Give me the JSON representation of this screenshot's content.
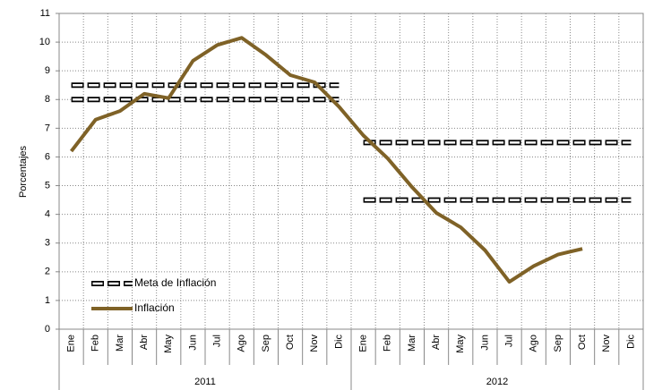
{
  "chart_data": {
    "type": "line",
    "y_label": "Porcentajes",
    "categories": [
      "Ene",
      "Feb",
      "Mar",
      "Abr",
      "May",
      "Jun",
      "Jul",
      "Ago",
      "Sep",
      "Oct",
      "Nov",
      "Dic",
      "Ene",
      "Feb",
      "Mar",
      "Abr",
      "May",
      "Jun",
      "Jul",
      "Ago",
      "Sep",
      "Oct",
      "Nov",
      "Dic"
    ],
    "year_groups": [
      "2011",
      "2012"
    ],
    "series": [
      {
        "name": "Meta de Inflación",
        "color": "#000000",
        "style": "dashed",
        "values": [
          8,
          8,
          8,
          8,
          8,
          8,
          8,
          8,
          8,
          8,
          8,
          8,
          4.5,
          4.5,
          4.5,
          4.5,
          4.5,
          4.5,
          4.5,
          4.5,
          4.5,
          4.5,
          4.5,
          4.5
        ],
        "upper": [
          8.5,
          8.5,
          8.5,
          8.5,
          8.5,
          8.5,
          8.5,
          8.5,
          8.5,
          8.5,
          8.5,
          8.5,
          6.5,
          6.5,
          6.5,
          6.5,
          6.5,
          6.5,
          6.5,
          6.5,
          6.5,
          6.5,
          6.5,
          6.5
        ]
      },
      {
        "name": "Inflación",
        "color": "#7f6227",
        "style": "solid",
        "values": [
          6.2,
          7.3,
          7.6,
          8.2,
          8.05,
          9.35,
          9.9,
          10.15,
          9.55,
          8.85,
          8.6,
          7.75,
          6.75,
          5.95,
          4.95,
          4.05,
          3.55,
          2.75,
          1.65,
          2.2,
          2.6,
          2.8,
          null,
          null
        ]
      }
    ],
    "ylim": [
      0,
      11
    ],
    "yticks": [
      0,
      1,
      2,
      3,
      4,
      5,
      6,
      7,
      8,
      9,
      10,
      11
    ],
    "grid": true,
    "legend": "lower left"
  }
}
